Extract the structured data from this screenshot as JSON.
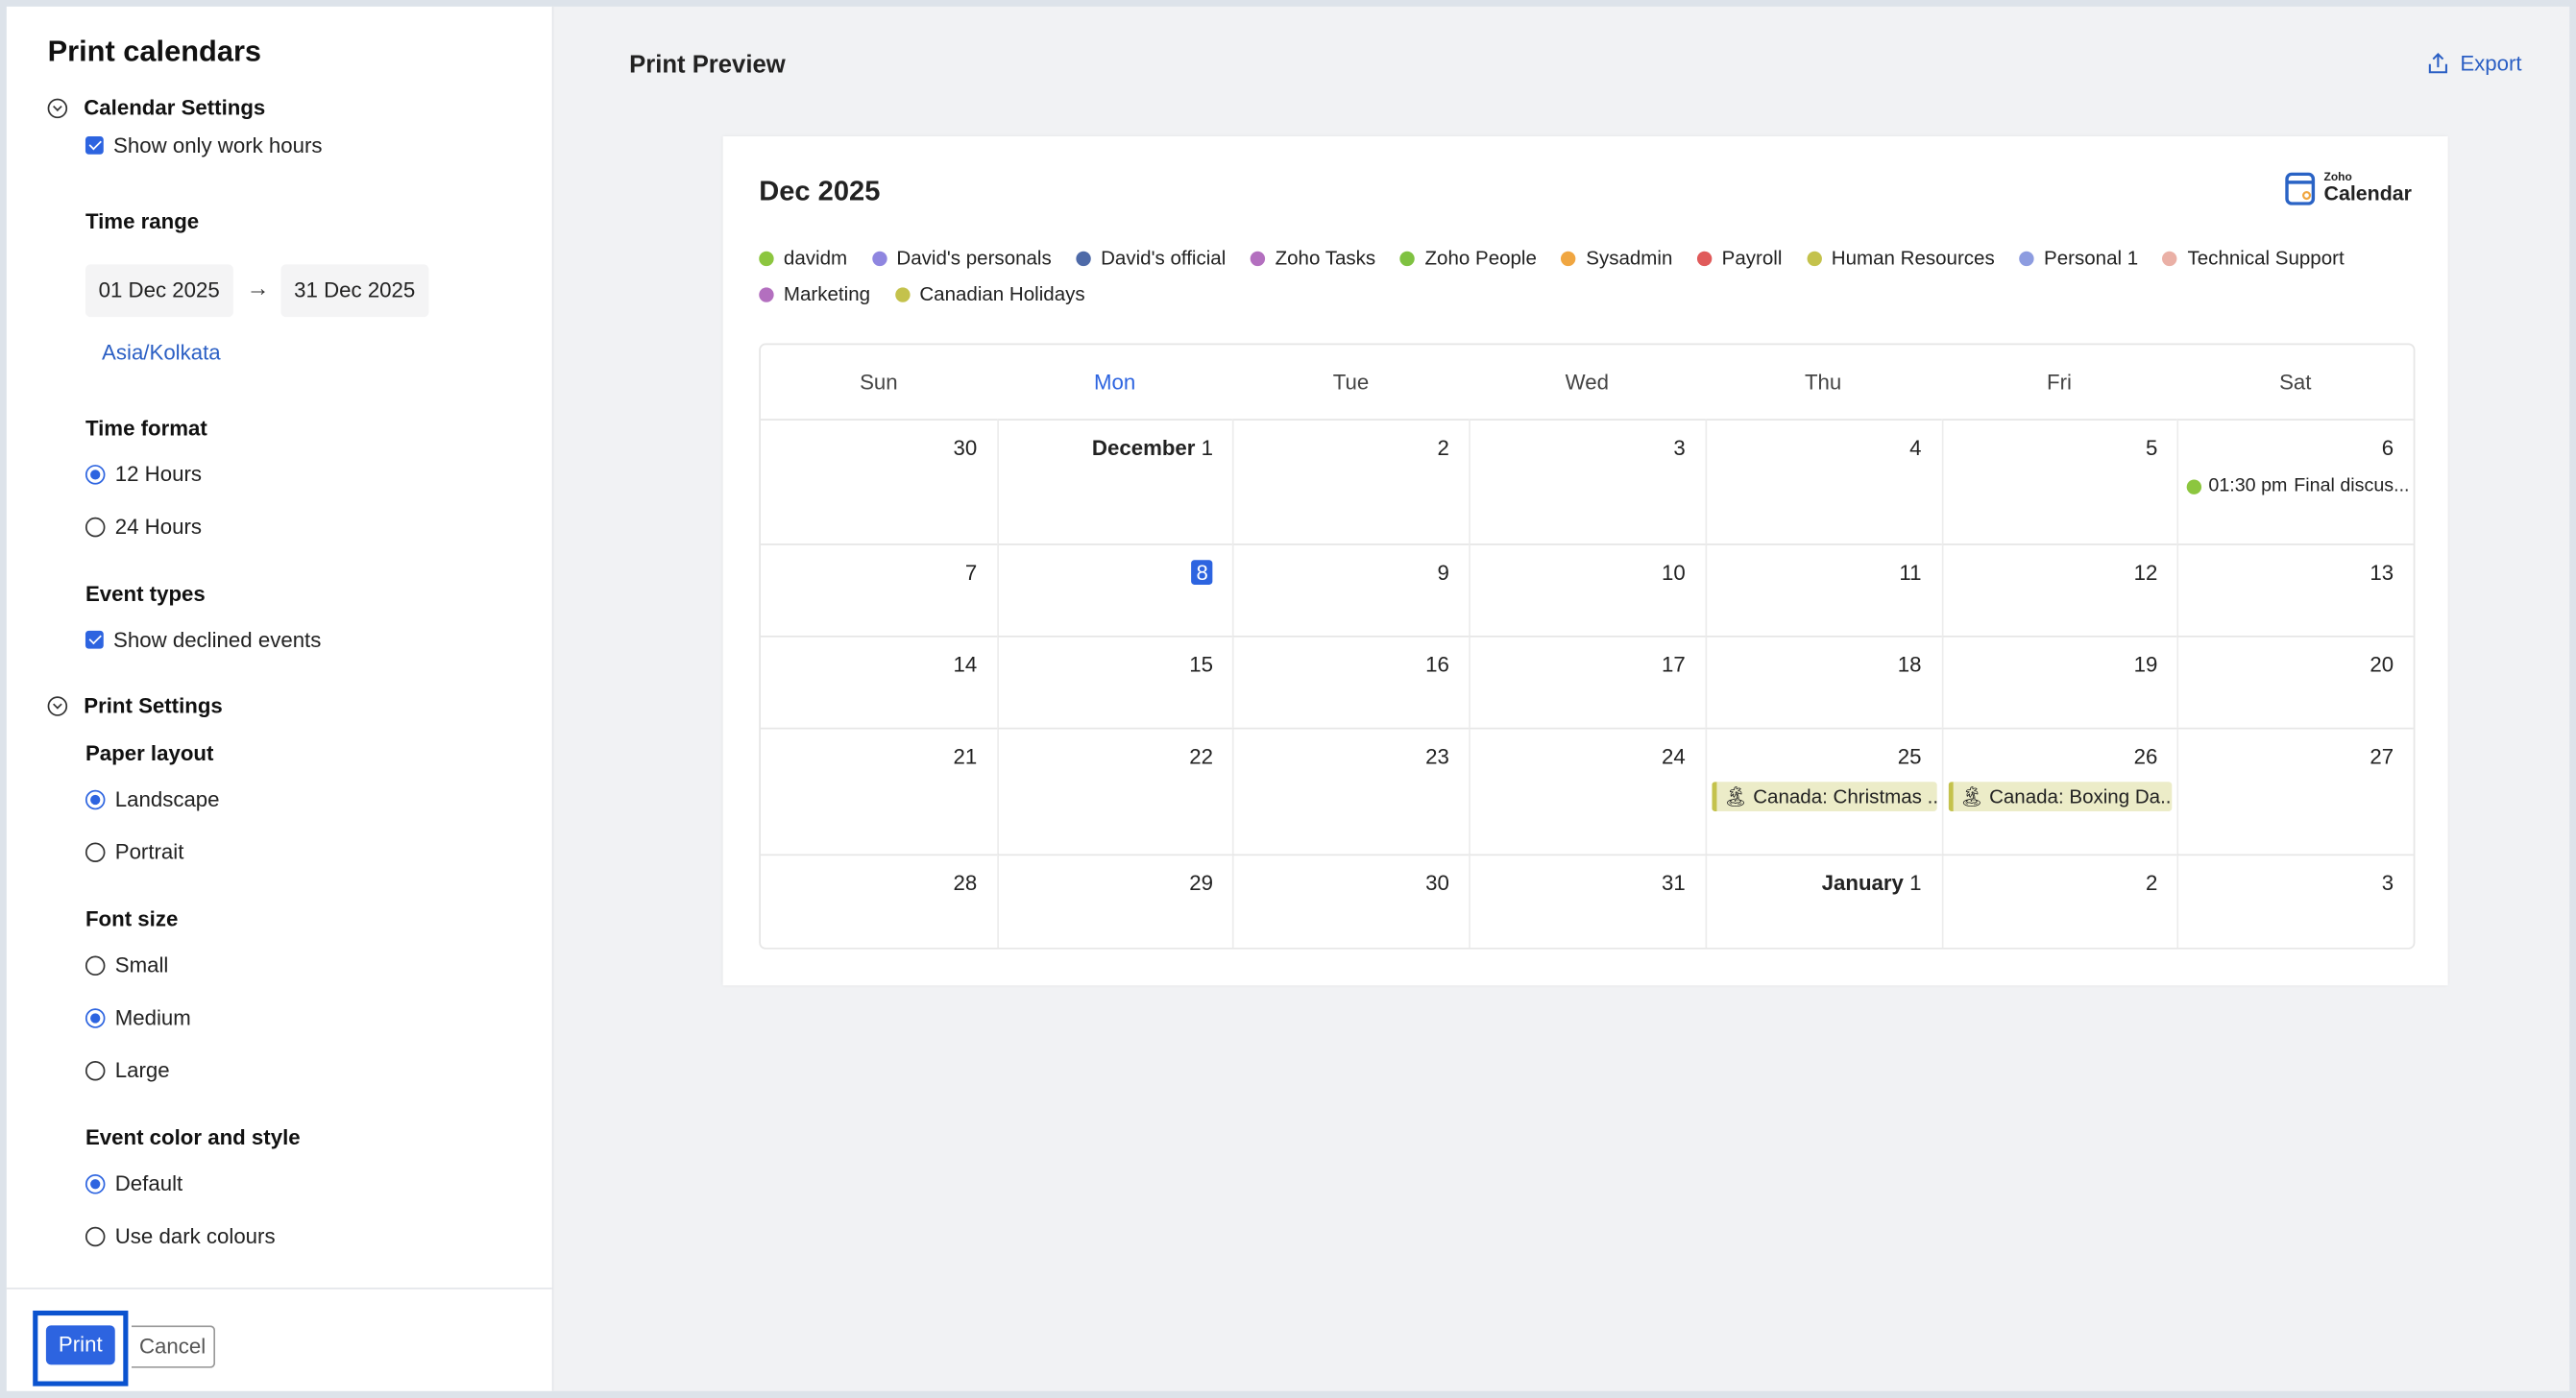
{
  "sidebar": {
    "title": "Print calendars",
    "calendar_settings": "Calendar Settings",
    "show_work_hours": "Show only work hours",
    "time_range_label": "Time range",
    "start_date": "01 Dec 2025",
    "end_date": "31 Dec 2025",
    "timezone": "Asia/Kolkata",
    "time_format_label": "Time format",
    "time_formats": [
      "12 Hours",
      "24 Hours"
    ],
    "event_types_label": "Event types",
    "show_declined": "Show declined events",
    "print_settings": "Print Settings",
    "paper_layout_label": "Paper layout",
    "paper_layouts": [
      "Landscape",
      "Portrait"
    ],
    "font_size_label": "Font size",
    "font_sizes": [
      "Small",
      "Medium",
      "Large"
    ],
    "color_style_label": "Event color and style",
    "color_styles": [
      "Default",
      "Use dark colours"
    ],
    "print_button": "Print",
    "cancel_button": "Cancel"
  },
  "main": {
    "title": "Print Preview",
    "export": "Export",
    "month": "Dec 2025",
    "logo_small": "Zoho",
    "logo_big": "Calendar",
    "legend": [
      {
        "name": "davidm",
        "color": "#8cc63f"
      },
      {
        "name": "David's personals",
        "color": "#8f86e0"
      },
      {
        "name": "David's official",
        "color": "#4e6aa8"
      },
      {
        "name": "Zoho Tasks",
        "color": "#b36fbf"
      },
      {
        "name": "Zoho People",
        "color": "#7fc241"
      },
      {
        "name": "Sysadmin",
        "color": "#f0a641"
      },
      {
        "name": "Payroll",
        "color": "#e05a5a"
      },
      {
        "name": "Human Resources",
        "color": "#c4c24c"
      },
      {
        "name": "Personal 1",
        "color": "#8d9ce0"
      },
      {
        "name": "Technical Support",
        "color": "#eab0a6"
      },
      {
        "name": "Marketing",
        "color": "#b36fbf"
      },
      {
        "name": "Canadian Holidays",
        "color": "#c4c24c"
      }
    ],
    "weekdays": [
      "Sun",
      "Mon",
      "Tue",
      "Wed",
      "Thu",
      "Fri",
      "Sat"
    ],
    "weeks": [
      [
        "30",
        {
          "month": "December",
          "day": "1"
        },
        "2",
        "3",
        "4",
        "5",
        "6"
      ],
      [
        "7",
        "8",
        "9",
        "10",
        "11",
        "12",
        "13"
      ],
      [
        "14",
        "15",
        "16",
        "17",
        "18",
        "19",
        "20"
      ],
      [
        "21",
        "22",
        "23",
        "24",
        "25",
        "26",
        "27"
      ],
      [
        "28",
        "29",
        "30",
        "31",
        {
          "month": "January",
          "day": "1"
        },
        "2",
        "3"
      ]
    ],
    "today": "8",
    "events": [
      {
        "week": 0,
        "day": 6,
        "time": "01:30 pm",
        "title": "Final discus...",
        "color": "#8cc63f"
      }
    ],
    "holidays": [
      {
        "week": 3,
        "day": 4,
        "title": "Canada: Christmas ..."
      },
      {
        "week": 3,
        "day": 5,
        "title": "Canada: Boxing Da..."
      }
    ],
    "accent": "#2d64e0"
  }
}
